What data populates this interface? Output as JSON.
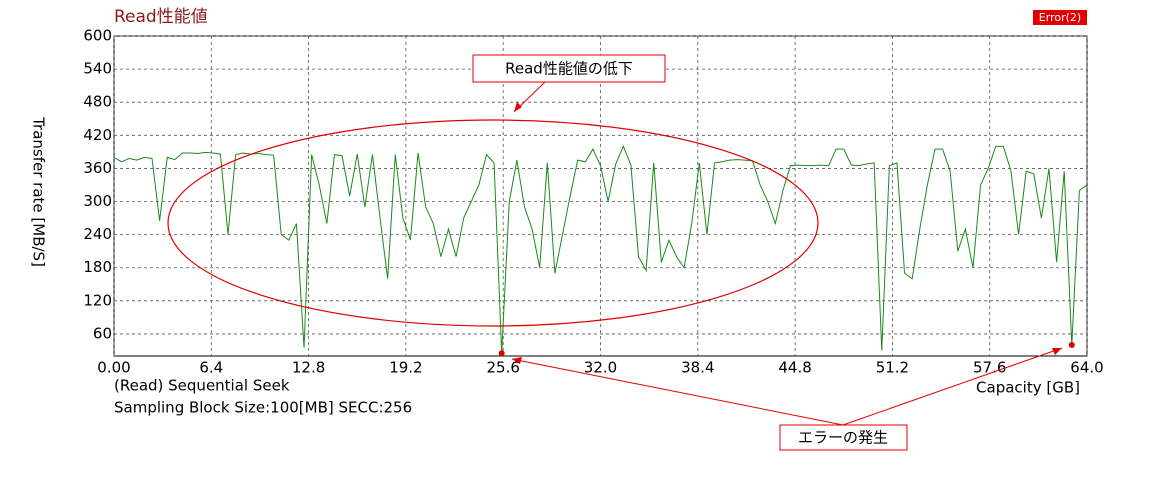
{
  "chart_data": {
    "type": "line",
    "title": "Read性能値",
    "y_label": "Transfer rate [MB/S]",
    "x_label": "Capacity [GB]",
    "test_mode": "(Read) Sequential Seek",
    "settings": "Sampling Block Size:100[MB] SECC:256",
    "error_badge": "Error(2)",
    "annotations": [
      {
        "text": "Read性能値の低下"
      },
      {
        "text": "エラーの発生"
      }
    ],
    "color": "#1a8a1a",
    "grid": true,
    "xlim": [
      0,
      64
    ],
    "ylim": [
      20,
      600
    ],
    "xticks": [
      {
        "value": 0,
        "label": "0.00"
      },
      6.4,
      12.8,
      19.2,
      25.6,
      {
        "value": 32,
        "label": "32.0"
      },
      38.4,
      44.8,
      51.2,
      57.6,
      {
        "value": 64,
        "label": "64.0"
      }
    ],
    "yticks": [
      60,
      120,
      180,
      240,
      300,
      360,
      420,
      480,
      540,
      600
    ],
    "x": [
      0,
      0.5,
      1,
      1.5,
      2,
      2.5,
      3,
      3.5,
      4,
      4.5,
      5,
      5.5,
      6,
      6.5,
      7,
      7.5,
      8,
      8.5,
      9,
      9.5,
      10,
      10.5,
      11,
      11.5,
      12,
      12.5,
      13,
      13.5,
      14,
      14.5,
      15,
      15.5,
      16,
      16.5,
      17,
      17.5,
      18,
      18.5,
      19,
      19.5,
      20,
      20.5,
      21,
      21.5,
      22,
      22.5,
      23,
      23.5,
      24,
      24.5,
      25,
      25.5,
      26,
      26.5,
      27,
      27.5,
      28,
      28.5,
      29,
      29.5,
      30,
      30.5,
      31,
      31.5,
      32,
      32.5,
      33,
      33.5,
      34,
      34.5,
      35,
      35.5,
      36,
      36.5,
      37,
      37.5,
      38,
      38.5,
      39,
      39.5,
      40,
      40.5,
      41,
      41.5,
      42,
      42.5,
      43,
      43.5,
      44,
      44.5,
      45,
      45.5,
      46,
      46.5,
      47,
      47.5,
      48,
      48.5,
      49,
      49.5,
      50,
      50.5,
      51,
      51.5,
      52,
      52.5,
      53,
      53.5,
      54,
      54.5,
      55,
      55.5,
      56,
      56.5,
      57,
      57.5,
      58,
      58.5,
      59,
      59.5,
      60,
      60.5,
      61,
      61.5,
      62,
      62.5,
      63,
      63.5,
      64
    ],
    "values": [
      380,
      372,
      378,
      375,
      380,
      378,
      265,
      380,
      376,
      388,
      388,
      387,
      389,
      388,
      386,
      240,
      385,
      388,
      386,
      387,
      385,
      384,
      240,
      230,
      260,
      35,
      385,
      330,
      260,
      385,
      383,
      310,
      386,
      290,
      385,
      270,
      160,
      385,
      270,
      230,
      388,
      290,
      260,
      200,
      250,
      200,
      270,
      300,
      330,
      385,
      370,
      25,
      300,
      375,
      290,
      250,
      180,
      370,
      170,
      240,
      310,
      375,
      372,
      395,
      365,
      300,
      368,
      400,
      366,
      200,
      175,
      370,
      190,
      230,
      200,
      180,
      260,
      370,
      240,
      370,
      372,
      375,
      376,
      375,
      374,
      330,
      300,
      260,
      320,
      365,
      366,
      365,
      365,
      366,
      365,
      395,
      395,
      366,
      365,
      368,
      370,
      30,
      365,
      370,
      170,
      160,
      250,
      330,
      395,
      395,
      355,
      210,
      250,
      180,
      330,
      360,
      400,
      400,
      355,
      240,
      355,
      350,
      270,
      360,
      190,
      355,
      40,
      320,
      330
    ],
    "errors": {
      "x": [
        25.5,
        63
      ],
      "values": [
        25,
        40
      ],
      "color": "#e00000"
    }
  }
}
